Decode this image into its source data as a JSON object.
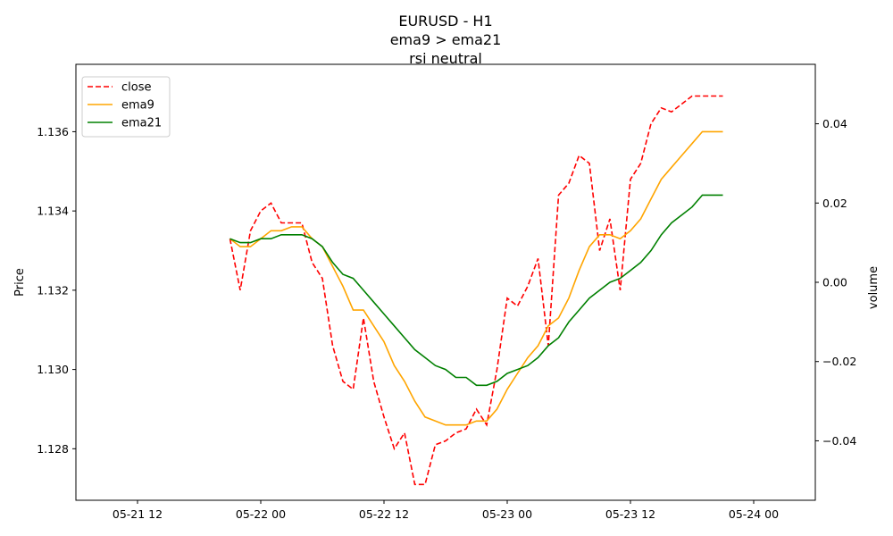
{
  "chart_data": {
    "type": "line",
    "title_lines": [
      "EURUSD - H1",
      "ema9 > ema21",
      "rsi neutral"
    ],
    "ylabel": "Price",
    "y2label": "volume",
    "xlim": [
      "2021-05-21T06:00",
      "2021-05-24T06:00"
    ],
    "ylim": [
      1.1267,
      1.1377
    ],
    "y2lim": [
      -0.055,
      0.055
    ],
    "x_ticks": [
      {
        "value": "2021-05-21T12:00",
        "label": "05-21 12"
      },
      {
        "value": "2021-05-22T00:00",
        "label": "05-22 00"
      },
      {
        "value": "2021-05-22T12:00",
        "label": "05-22 12"
      },
      {
        "value": "2021-05-23T00:00",
        "label": "05-23 00"
      },
      {
        "value": "2021-05-23T12:00",
        "label": "05-23 12"
      },
      {
        "value": "2021-05-24T00:00",
        "label": "05-24 00"
      }
    ],
    "y_ticks": [
      {
        "value": 1.128,
        "label": "1.128"
      },
      {
        "value": 1.13,
        "label": "1.130"
      },
      {
        "value": 1.132,
        "label": "1.132"
      },
      {
        "value": 1.134,
        "label": "1.134"
      },
      {
        "value": 1.136,
        "label": "1.136"
      }
    ],
    "y2_ticks": [
      {
        "value": -0.04,
        "label": "−0.04"
      },
      {
        "value": -0.02,
        "label": "−0.02"
      },
      {
        "value": 0.0,
        "label": "0.00"
      },
      {
        "value": 0.02,
        "label": "0.02"
      },
      {
        "value": 0.04,
        "label": "0.04"
      }
    ],
    "legend_position": "top-left",
    "grid": false,
    "x": [
      "2021-05-21T21:00",
      "2021-05-21T22:00",
      "2021-05-21T23:00",
      "2021-05-22T00:00",
      "2021-05-22T01:00",
      "2021-05-22T02:00",
      "2021-05-22T03:00",
      "2021-05-22T04:00",
      "2021-05-22T05:00",
      "2021-05-22T06:00",
      "2021-05-22T07:00",
      "2021-05-22T08:00",
      "2021-05-22T09:00",
      "2021-05-22T10:00",
      "2021-05-22T11:00",
      "2021-05-22T12:00",
      "2021-05-22T13:00",
      "2021-05-22T14:00",
      "2021-05-22T15:00",
      "2021-05-22T16:00",
      "2021-05-22T17:00",
      "2021-05-22T18:00",
      "2021-05-22T19:00",
      "2021-05-22T20:00",
      "2021-05-22T21:00",
      "2021-05-22T22:00",
      "2021-05-22T23:00",
      "2021-05-23T00:00",
      "2021-05-23T01:00",
      "2021-05-23T02:00",
      "2021-05-23T03:00",
      "2021-05-23T04:00",
      "2021-05-23T05:00",
      "2021-05-23T06:00",
      "2021-05-23T07:00",
      "2021-05-23T08:00",
      "2021-05-23T09:00",
      "2021-05-23T10:00",
      "2021-05-23T11:00",
      "2021-05-23T12:00",
      "2021-05-23T13:00",
      "2021-05-23T14:00",
      "2021-05-23T15:00",
      "2021-05-23T16:00",
      "2021-05-23T17:00",
      "2021-05-23T18:00",
      "2021-05-23T19:00",
      "2021-05-23T20:00",
      "2021-05-23T21:00"
    ],
    "series": [
      {
        "name": "close",
        "color": "#ff0000",
        "dashed": true,
        "values": [
          1.1333,
          1.132,
          1.1335,
          1.134,
          1.1342,
          1.1337,
          1.1337,
          1.1337,
          1.1327,
          1.1323,
          1.1306,
          1.1297,
          1.1295,
          1.1313,
          1.1297,
          1.1288,
          1.128,
          1.1284,
          1.1271,
          1.1271,
          1.1281,
          1.1282,
          1.1284,
          1.1285,
          1.129,
          1.1286,
          1.13,
          1.1318,
          1.1316,
          1.1321,
          1.1328,
          1.1306,
          1.1344,
          1.1347,
          1.1354,
          1.1352,
          1.133,
          1.1338,
          1.132,
          1.1348,
          1.1352,
          1.1362,
          1.1366,
          1.1365,
          1.1367,
          1.1369,
          1.1369,
          1.1369,
          1.1369
        ]
      },
      {
        "name": "ema9",
        "color": "#ffa500",
        "dashed": false,
        "values": [
          1.1333,
          1.1331,
          1.1331,
          1.1333,
          1.1335,
          1.1335,
          1.1336,
          1.1336,
          1.1333,
          1.1331,
          1.1326,
          1.1321,
          1.1315,
          1.1315,
          1.1311,
          1.1307,
          1.1301,
          1.1297,
          1.1292,
          1.1288,
          1.1287,
          1.1286,
          1.1286,
          1.1286,
          1.1287,
          1.1287,
          1.129,
          1.1295,
          1.1299,
          1.1303,
          1.1306,
          1.1311,
          1.1313,
          1.1318,
          1.1325,
          1.1331,
          1.1334,
          1.1334,
          1.1333,
          1.1335,
          1.1338,
          1.1343,
          1.1348,
          1.1351,
          1.1354,
          1.1357,
          1.136,
          1.136,
          1.136
        ]
      },
      {
        "name": "ema21",
        "color": "#008000",
        "dashed": false,
        "values": [
          1.1333,
          1.1332,
          1.1332,
          1.1333,
          1.1333,
          1.1334,
          1.1334,
          1.1334,
          1.1333,
          1.1331,
          1.1327,
          1.1324,
          1.1323,
          1.132,
          1.1317,
          1.1314,
          1.1311,
          1.1308,
          1.1305,
          1.1303,
          1.1301,
          1.13,
          1.1298,
          1.1298,
          1.1296,
          1.1296,
          1.1297,
          1.1299,
          1.13,
          1.1301,
          1.1303,
          1.1306,
          1.1308,
          1.1312,
          1.1315,
          1.1318,
          1.132,
          1.1322,
          1.1323,
          1.1325,
          1.1327,
          1.133,
          1.1334,
          1.1337,
          1.1339,
          1.1341,
          1.1344,
          1.1344,
          1.1344
        ]
      }
    ]
  }
}
